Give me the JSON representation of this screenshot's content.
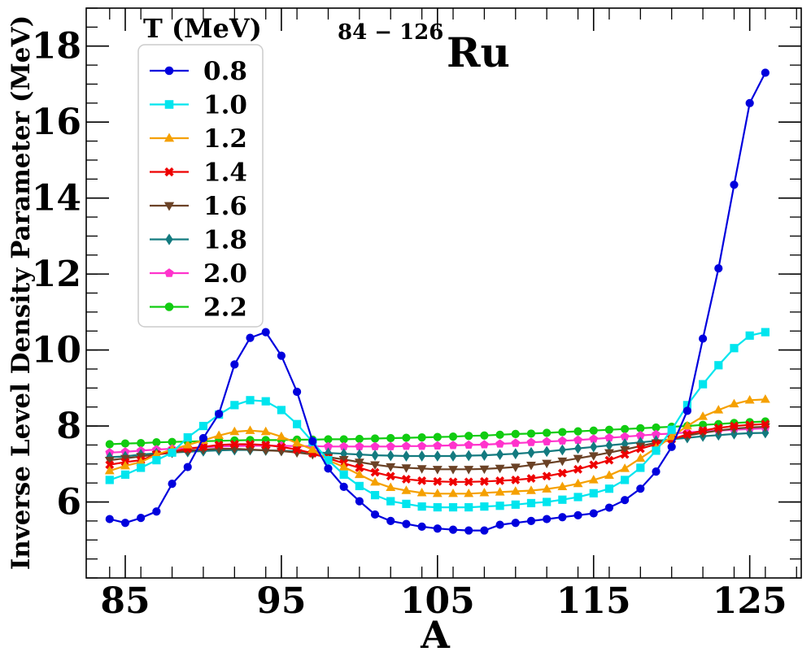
{
  "chart_data": {
    "type": "line",
    "title_mass": "84 − 126",
    "title_element": "Ru",
    "xlabel": "A",
    "ylabel": "Inverse Level Density Parameter (MeV)",
    "xlim": [
      82.5,
      128.3
    ],
    "ylim": [
      4.0,
      19.0
    ],
    "xticks": [
      85,
      95,
      105,
      115,
      125
    ],
    "yticks": [
      6,
      8,
      10,
      12,
      14,
      16,
      18
    ],
    "legend_title": "T (MeV)",
    "legend_position": "top-left",
    "x": [
      84,
      85,
      86,
      87,
      88,
      89,
      90,
      91,
      92,
      93,
      94,
      95,
      96,
      97,
      98,
      99,
      100,
      101,
      102,
      103,
      104,
      105,
      106,
      107,
      108,
      109,
      110,
      111,
      112,
      113,
      114,
      115,
      116,
      117,
      118,
      119,
      120,
      121,
      122,
      123,
      124,
      125,
      126
    ],
    "series": [
      {
        "name": "0.8",
        "color": "#0000dd",
        "marker": "circle",
        "values": [
          5.55,
          5.45,
          5.58,
          5.75,
          6.48,
          6.92,
          7.68,
          8.32,
          9.62,
          10.32,
          10.47,
          9.85,
          8.9,
          7.6,
          6.88,
          6.4,
          6.02,
          5.67,
          5.5,
          5.42,
          5.35,
          5.3,
          5.27,
          5.25,
          5.25,
          5.4,
          5.45,
          5.5,
          5.55,
          5.6,
          5.65,
          5.7,
          5.85,
          6.05,
          6.35,
          6.8,
          7.45,
          8.4,
          10.3,
          12.15,
          14.35,
          16.5,
          17.3
        ]
      },
      {
        "name": "1.0",
        "color": "#00e5ee",
        "marker": "square",
        "values": [
          6.58,
          6.72,
          6.9,
          7.1,
          7.3,
          7.7,
          8.0,
          8.3,
          8.55,
          8.68,
          8.65,
          8.42,
          8.05,
          7.58,
          7.1,
          6.72,
          6.42,
          6.18,
          6.02,
          5.95,
          5.88,
          5.86,
          5.86,
          5.86,
          5.88,
          5.9,
          5.93,
          5.97,
          6.0,
          6.06,
          6.13,
          6.23,
          6.35,
          6.58,
          6.9,
          7.35,
          7.9,
          8.55,
          9.1,
          9.6,
          10.05,
          10.38,
          10.47
        ]
      },
      {
        "name": "1.2",
        "color": "#f5a000",
        "marker": "triangle-up",
        "values": [
          6.82,
          6.95,
          7.05,
          7.25,
          7.38,
          7.5,
          7.62,
          7.75,
          7.85,
          7.88,
          7.85,
          7.72,
          7.55,
          7.38,
          7.1,
          6.92,
          6.72,
          6.52,
          6.38,
          6.3,
          6.24,
          6.22,
          6.22,
          6.22,
          6.24,
          6.26,
          6.28,
          6.3,
          6.34,
          6.4,
          6.48,
          6.58,
          6.7,
          6.88,
          7.15,
          7.42,
          7.72,
          8.0,
          8.25,
          8.42,
          8.58,
          8.68,
          8.7
        ]
      },
      {
        "name": "1.4",
        "color": "#ee0000",
        "marker": "x",
        "values": [
          6.98,
          7.05,
          7.1,
          7.25,
          7.33,
          7.4,
          7.45,
          7.5,
          7.52,
          7.52,
          7.5,
          7.45,
          7.38,
          7.28,
          7.15,
          7.02,
          6.9,
          6.78,
          6.68,
          6.6,
          6.56,
          6.54,
          6.53,
          6.53,
          6.54,
          6.56,
          6.58,
          6.62,
          6.68,
          6.76,
          6.86,
          6.98,
          7.1,
          7.25,
          7.4,
          7.52,
          7.65,
          7.78,
          7.88,
          7.95,
          8.0,
          8.03,
          8.05
        ]
      },
      {
        "name": "1.6",
        "color": "#6b4226",
        "marker": "triangle-down",
        "values": [
          7.1,
          7.15,
          7.2,
          7.25,
          7.3,
          7.35,
          7.38,
          7.4,
          7.4,
          7.38,
          7.36,
          7.34,
          7.3,
          7.25,
          7.18,
          7.12,
          7.05,
          6.98,
          6.93,
          6.9,
          6.88,
          6.86,
          6.86,
          6.86,
          6.87,
          6.89,
          6.92,
          6.97,
          7.02,
          7.08,
          7.15,
          7.22,
          7.3,
          7.38,
          7.47,
          7.56,
          7.65,
          7.75,
          7.82,
          7.88,
          7.93,
          7.96,
          7.98
        ]
      },
      {
        "name": "1.8",
        "color": "#137a7f",
        "marker": "diamond",
        "values": [
          7.18,
          7.2,
          7.25,
          7.28,
          7.3,
          7.32,
          7.34,
          7.36,
          7.37,
          7.37,
          7.36,
          7.35,
          7.33,
          7.31,
          7.29,
          7.27,
          7.25,
          7.23,
          7.22,
          7.21,
          7.21,
          7.21,
          7.21,
          7.22,
          7.23,
          7.25,
          7.27,
          7.3,
          7.33,
          7.37,
          7.41,
          7.45,
          7.49,
          7.53,
          7.57,
          7.61,
          7.65,
          7.69,
          7.73,
          7.76,
          7.79,
          7.81,
          7.82
        ]
      },
      {
        "name": "2.0",
        "color": "#ff33cc",
        "marker": "pentagon",
        "values": [
          7.3,
          7.32,
          7.35,
          7.38,
          7.4,
          7.42,
          7.44,
          7.46,
          7.47,
          7.48,
          7.48,
          7.48,
          7.47,
          7.47,
          7.46,
          7.46,
          7.46,
          7.46,
          7.46,
          7.47,
          7.47,
          7.48,
          7.49,
          7.5,
          7.51,
          7.53,
          7.55,
          7.57,
          7.59,
          7.61,
          7.63,
          7.66,
          7.69,
          7.72,
          7.75,
          7.78,
          7.8,
          7.83,
          7.86,
          7.88,
          7.9,
          7.92,
          7.94
        ]
      },
      {
        "name": "2.2",
        "color": "#11cc11",
        "marker": "circle",
        "values": [
          7.52,
          7.54,
          7.55,
          7.57,
          7.58,
          7.59,
          7.6,
          7.61,
          7.62,
          7.63,
          7.63,
          7.63,
          7.64,
          7.64,
          7.65,
          7.65,
          7.66,
          7.67,
          7.68,
          7.69,
          7.7,
          7.71,
          7.72,
          7.74,
          7.75,
          7.77,
          7.79,
          7.8,
          7.82,
          7.84,
          7.86,
          7.88,
          7.9,
          7.92,
          7.94,
          7.96,
          7.98,
          8.0,
          8.03,
          8.05,
          8.08,
          8.1,
          8.12
        ]
      }
    ]
  }
}
